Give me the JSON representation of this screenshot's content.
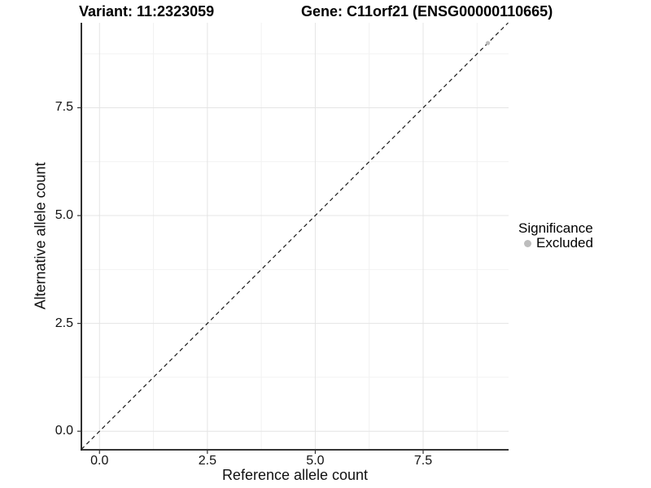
{
  "title": {
    "variant": "Variant: 11:2323059",
    "gene": "Gene: C11orf21 (ENSG00000110665)"
  },
  "legend": {
    "title": "Significance",
    "position": "right",
    "items": [
      {
        "label": "Excluded",
        "color": "#bdbdbd",
        "shape": "circle"
      }
    ]
  },
  "colors": {
    "background": "#ffffff",
    "grid_major": "#e4e4e4",
    "grid_minor": "#f2f2f2",
    "axis_line": "#1a1a1a",
    "tick_mark": "#333333",
    "tick_text": "#111111",
    "reference_line": "#1a1a1a",
    "point": "#bdbdbd"
  },
  "chart_data": {
    "type": "scatter",
    "title": "Variant: 11:2323059   Gene: C11orf21 (ENSG00000110665)",
    "xlabel": "Reference allele count",
    "ylabel": "Alternative allele count",
    "xlim": [
      -0.42,
      9.48
    ],
    "ylim": [
      -0.43,
      9.47
    ],
    "xticks": [
      0.0,
      2.5,
      5.0,
      7.5
    ],
    "yticks": [
      0.0,
      2.5,
      5.0,
      7.5
    ],
    "xtick_labels": [
      "0.0",
      "2.5",
      "5.0",
      "7.5"
    ],
    "ytick_labels": [
      "0.0",
      "2.5",
      "5.0",
      "7.5"
    ],
    "xminor": [
      1.25,
      3.75,
      6.25,
      8.75
    ],
    "yminor": [
      1.25,
      3.75,
      6.25,
      8.75
    ],
    "grid": "major+minor",
    "legend_position": "right",
    "series": [
      {
        "name": "Excluded",
        "color": "#bdbdbd",
        "points": [
          {
            "x": 9,
            "y": 9
          }
        ]
      }
    ],
    "reference_line": {
      "type": "abline",
      "slope": 1,
      "intercept": 0,
      "style": "dashed"
    }
  }
}
